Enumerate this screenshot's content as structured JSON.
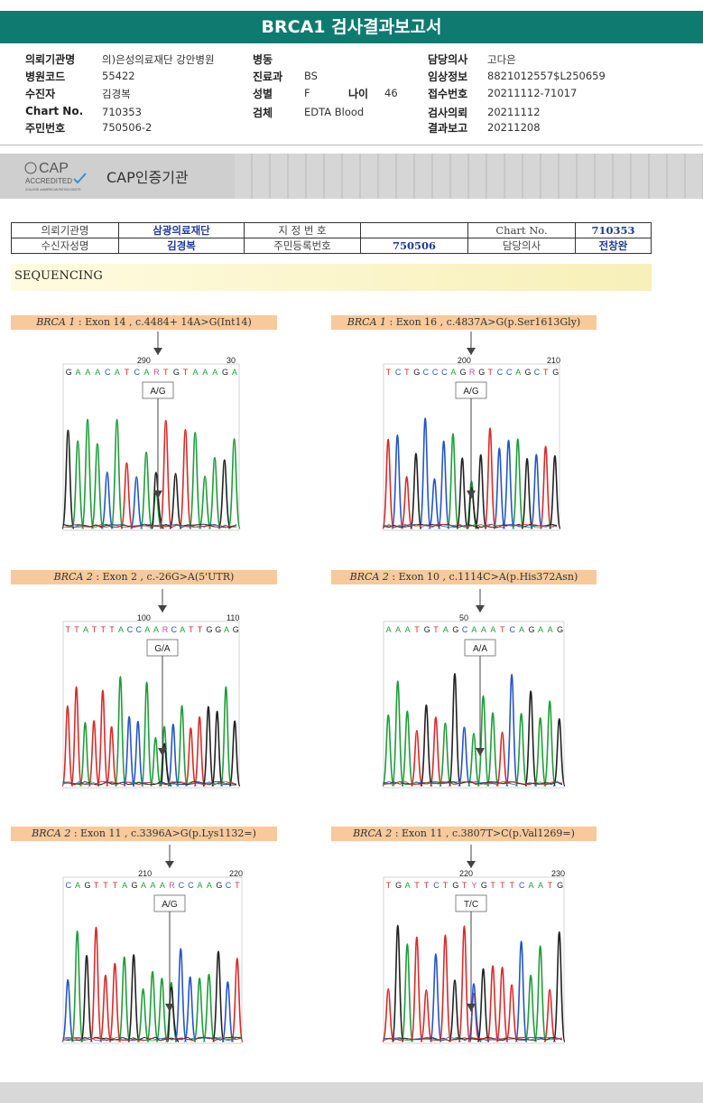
{
  "title": "BRCA1 검사결과보고서",
  "patient_info": {
    "left": [
      {
        "label": "의뢰기관명",
        "value": "의)은성의료재단 강안병원"
      },
      {
        "label": "병원코드",
        "value": "55422"
      },
      {
        "label": "수진자",
        "value": "김경복"
      },
      {
        "label": "Chart No.",
        "value": "710353"
      },
      {
        "label": "주민번호",
        "value": "750506-2"
      }
    ],
    "middle": [
      {
        "label": "병동",
        "value": ""
      },
      {
        "label": "진료과",
        "value": "BS"
      },
      {
        "label": "성별",
        "value": "F"
      },
      {
        "label": "검체",
        "value": "EDTA Blood"
      }
    ],
    "age": {
      "label": "나이",
      "value": "46"
    },
    "right": [
      {
        "label": "담당의사",
        "value": "고다은"
      },
      {
        "label": "임상정보",
        "value": "8821012557$L250659"
      },
      {
        "label": "접수번호",
        "value": "20211112-71017"
      },
      {
        "label": "검사의뢰",
        "value": "20211112"
      },
      {
        "label": "결과보고",
        "value": "20211208"
      }
    ]
  },
  "cap": {
    "logo_text": "CAP",
    "logo_sub": "ACCREDITED",
    "logo_small": "COLLEGE of AMERICAN PATHOLOGISTS",
    "label": "CAP인증기관"
  },
  "lab_table": {
    "row1": {
      "c1": "의뢰기관명",
      "c2": "삼광의료재단",
      "c3": "지 정 번 호",
      "c4": "",
      "c5": "Chart No.",
      "c6": "710353"
    },
    "row2": {
      "c1": "수신자성명",
      "c2": "김경복",
      "c3": "주민등록번호",
      "c4": "750506",
      "c5": "담당의사",
      "c6": "전창완"
    }
  },
  "section_title": "SEQUENCING",
  "panels": [
    {
      "gene": "BRCA 1",
      "label_rest": ": Exon 14 , c.4484+ 14A>G(Int14)",
      "pos_left": "290",
      "pos_right": "30",
      "seq": "G A A A C A T C A R T G T A A A G A",
      "call": "A/G"
    },
    {
      "gene": "BRCA 1",
      "label_rest": ": Exon 16 , c.4837A>G(p.Ser1613Gly)",
      "pos_left": "200",
      "pos_right": "210",
      "seq": "T C T G C C C A G R G T C C A G C T G",
      "call": "A/G"
    },
    {
      "gene": "BRCA 2",
      "label_rest": ": Exon 2 , c.-26G>A(5'UTR)",
      "pos_left": "100",
      "pos_right": "110",
      "seq": "T T A T T T A C C A A R C A T T G G A G",
      "call": "G/A"
    },
    {
      "gene": "BRCA 2",
      "label_rest": ": Exon 10 , c.1114C>A(p.His372Asn)",
      "pos_left": "50",
      "pos_right": "",
      "seq": "A A A T G T A G C A A A T C A G A A G",
      "call": "A/A"
    },
    {
      "gene": "BRCA 2",
      "label_rest": ": Exon 11 , c.3396A>G(p.Lys1132=)",
      "pos_left": "210",
      "pos_right": "220",
      "seq": "C A G T T T A G A A A R C C A A G C T",
      "call": "A/G"
    },
    {
      "gene": "BRCA 2",
      "label_rest": ": Exon 11 , c.3807T>C(p.Val1269=)",
      "pos_left": "220",
      "pos_right": "230",
      "seq": "T G A T T C T G T Y G T T T C A A T G",
      "call": "T/C"
    }
  ],
  "colors": {
    "header": "#0f7a70",
    "A": "#1e9e3a",
    "C": "#2456c8",
    "G": "#222222",
    "T": "#d92b2b",
    "RY": "#c04fa0",
    "label_bg": "#f8c99a"
  }
}
